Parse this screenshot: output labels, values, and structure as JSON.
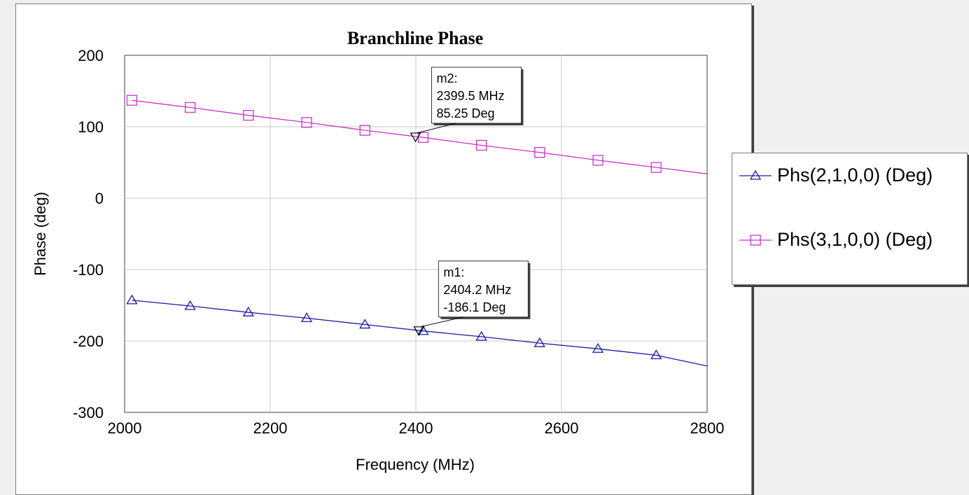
{
  "chart_data": {
    "type": "line",
    "title": "Branchline Phase",
    "xlabel": "Frequency (MHz)",
    "ylabel": "Phase (deg)",
    "xlim": [
      2000,
      2800
    ],
    "ylim": [
      -300,
      200
    ],
    "x_ticks": [
      "2000",
      "2200",
      "2400",
      "2600",
      "2800"
    ],
    "y_ticks": [
      "200",
      "100",
      "0",
      "-100",
      "-200",
      "-300"
    ],
    "grid": true,
    "legend_placement": "right",
    "series": [
      {
        "name": "Phs(2,1,0,0) (Deg)",
        "color": "#1a1aa6",
        "marker": "triangle",
        "x": [
          2010,
          2090,
          2170,
          2250,
          2330,
          2410,
          2490,
          2570,
          2650,
          2730,
          2800
        ],
        "y": [
          -143,
          -151,
          -160,
          -168,
          -177,
          -186,
          -194,
          -203,
          -211,
          -220,
          -235
        ]
      },
      {
        "name": "Phs(3,1,0,0) (Deg)",
        "color": "#cc33cc",
        "marker": "square",
        "x": [
          2010,
          2090,
          2170,
          2250,
          2330,
          2410,
          2490,
          2570,
          2650,
          2730,
          2800
        ],
        "y": [
          137,
          127,
          116,
          106,
          95,
          85,
          74,
          64,
          53,
          43,
          34
        ]
      }
    ],
    "markers": [
      {
        "name": "m2",
        "freq": "2399.5 MHz",
        "value": "85.25 Deg",
        "x": 2399.5,
        "y": 85.25,
        "series": 1
      },
      {
        "name": "m1",
        "freq": "2404.2 MHz",
        "value": "-186.1 Deg",
        "x": 2404.2,
        "y": -186.1,
        "series": 0
      }
    ]
  }
}
